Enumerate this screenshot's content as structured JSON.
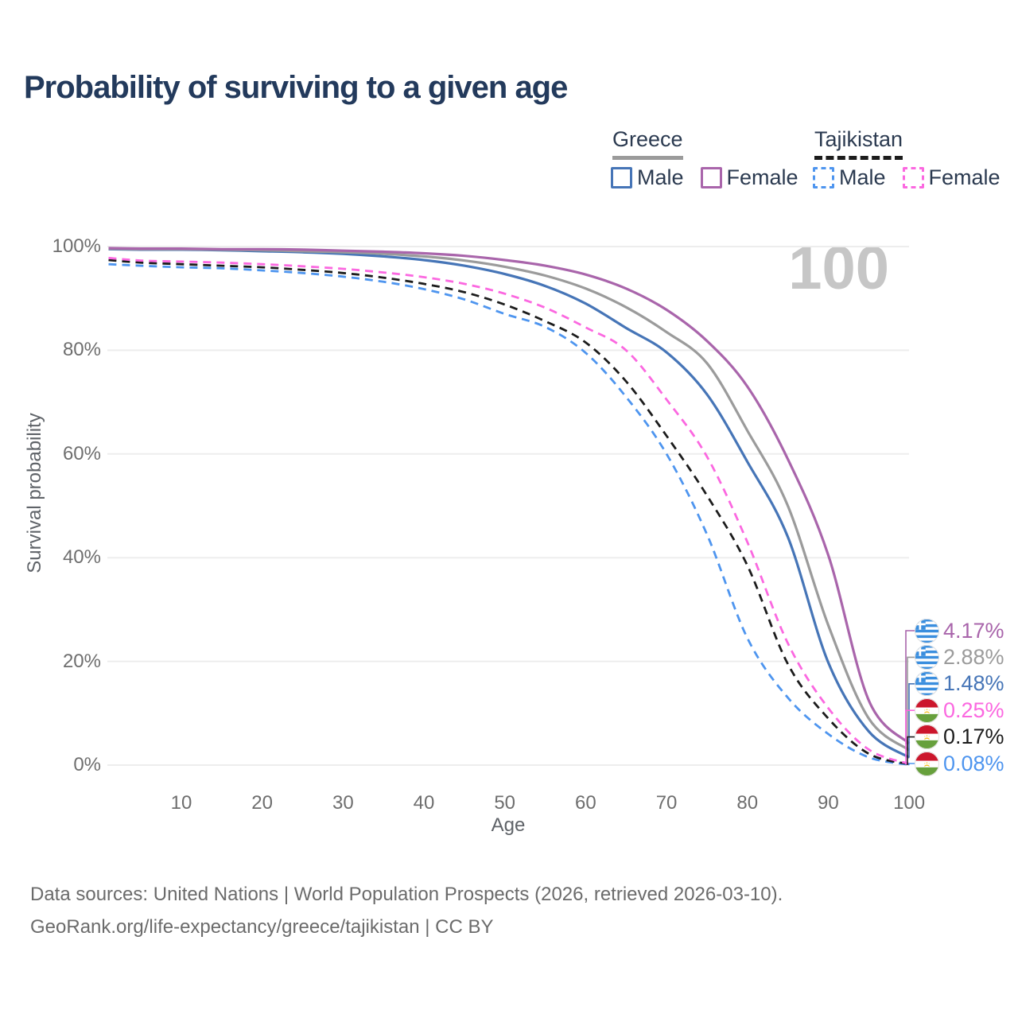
{
  "title": "Probability of surviving to a given age",
  "watermark": "100",
  "legend": {
    "groups": [
      {
        "title": "Greece",
        "underline": "solid",
        "underline_color": "#9b9b9b",
        "items": [
          {
            "label": "Male",
            "color": "#4675b7",
            "dashed": false
          },
          {
            "label": "Female",
            "color": "#a965ab",
            "dashed": false
          }
        ]
      },
      {
        "title": "Tajikistan",
        "underline": "dashed",
        "underline_color": "#1c1c1c",
        "items": [
          {
            "label": "Male",
            "color": "#4e95ef",
            "dashed": true
          },
          {
            "label": "Female",
            "color": "#fb68e0",
            "dashed": true
          }
        ]
      }
    ]
  },
  "chart_data": {
    "type": "line",
    "title": "Probability of surviving to a given age",
    "xlabel": "Age",
    "ylabel": "Survival probability",
    "grid": "horizontal",
    "legend_position": "top-right",
    "xlim": [
      0,
      100
    ],
    "ylim": [
      0,
      100
    ],
    "x_ticks": [
      10,
      20,
      30,
      40,
      50,
      60,
      70,
      80,
      90,
      100
    ],
    "y_ticks": [
      {
        "label": "0%",
        "value": 0
      },
      {
        "label": "20%",
        "value": 20
      },
      {
        "label": "40%",
        "value": 40
      },
      {
        "label": "60%",
        "value": 60
      },
      {
        "label": "80%",
        "value": 80
      },
      {
        "label": "100%",
        "value": 100
      }
    ],
    "ages": [
      1,
      5,
      10,
      15,
      20,
      25,
      30,
      35,
      40,
      45,
      50,
      55,
      60,
      65,
      70,
      75,
      80,
      85,
      90,
      95,
      100
    ],
    "series": [
      {
        "name": "Greece Female",
        "country": "Greece",
        "sex": "Female",
        "style": "solid",
        "color": "#a965ab",
        "end_label": "4.17%",
        "values": [
          99.7,
          99.6,
          99.6,
          99.5,
          99.5,
          99.4,
          99.2,
          99.0,
          98.7,
          98.2,
          97.4,
          96.3,
          94.6,
          91.9,
          87.8,
          81.8,
          73.0,
          59.0,
          40.5,
          12.5,
          4.17
        ]
      },
      {
        "name": "Greece Both sexes",
        "country": "Greece",
        "sex": "Both",
        "style": "solid",
        "color": "#9b9b9b",
        "end_label": "2.88%",
        "values": [
          99.6,
          99.5,
          99.5,
          99.4,
          99.3,
          99.1,
          98.9,
          98.6,
          98.1,
          97.3,
          96.1,
          94.4,
          91.9,
          88.3,
          83.5,
          77.5,
          64.5,
          50.0,
          27.0,
          9.0,
          2.88
        ]
      },
      {
        "name": "Greece Male",
        "country": "Greece",
        "sex": "Male",
        "style": "solid",
        "color": "#4675b7",
        "end_label": "1.48%",
        "values": [
          99.5,
          99.4,
          99.4,
          99.3,
          99.1,
          98.9,
          98.6,
          98.1,
          97.4,
          96.3,
          94.7,
          92.4,
          89.0,
          84.3,
          79.6,
          71.5,
          58.5,
          44.0,
          19.8,
          6.5,
          1.48
        ]
      },
      {
        "name": "Tajikistan Female",
        "country": "Tajikistan",
        "sex": "Female",
        "style": "dashed",
        "color": "#fb68e0",
        "end_label": "0.25%",
        "values": [
          97.8,
          97.3,
          97.1,
          96.9,
          96.6,
          96.2,
          95.7,
          95.0,
          94.1,
          92.8,
          90.9,
          88.2,
          84.4,
          80.0,
          70.5,
          59.5,
          43.0,
          23.5,
          11.0,
          3.0,
          0.25
        ]
      },
      {
        "name": "Tajikistan Both sexes",
        "country": "Tajikistan",
        "sex": "Both",
        "style": "dashed",
        "color": "#1c1c1c",
        "end_label": "0.17%",
        "values": [
          97.4,
          96.9,
          96.6,
          96.3,
          96.0,
          95.5,
          94.9,
          94.0,
          92.8,
          91.2,
          88.8,
          85.6,
          81.5,
          74.0,
          63.5,
          52.0,
          38.5,
          19.5,
          9.0,
          2.2,
          0.17
        ]
      },
      {
        "name": "Tajikistan Male",
        "country": "Tajikistan",
        "sex": "Male",
        "style": "dashed",
        "color": "#4e95ef",
        "end_label": "0.08%",
        "values": [
          96.6,
          96.3,
          96.0,
          95.8,
          95.4,
          94.9,
          94.2,
          93.2,
          91.8,
          89.8,
          87.0,
          84.5,
          79.5,
          71.0,
          60.0,
          44.5,
          24.5,
          13.0,
          6.0,
          1.5,
          0.08
        ]
      }
    ]
  },
  "footer": {
    "line1": "Data sources: United Nations | World Population Prospects (2026, retrieved 2026-03-10).",
    "line2": "GeoRank.org/life-expectancy/greece/tajikistan | CC BY"
  }
}
